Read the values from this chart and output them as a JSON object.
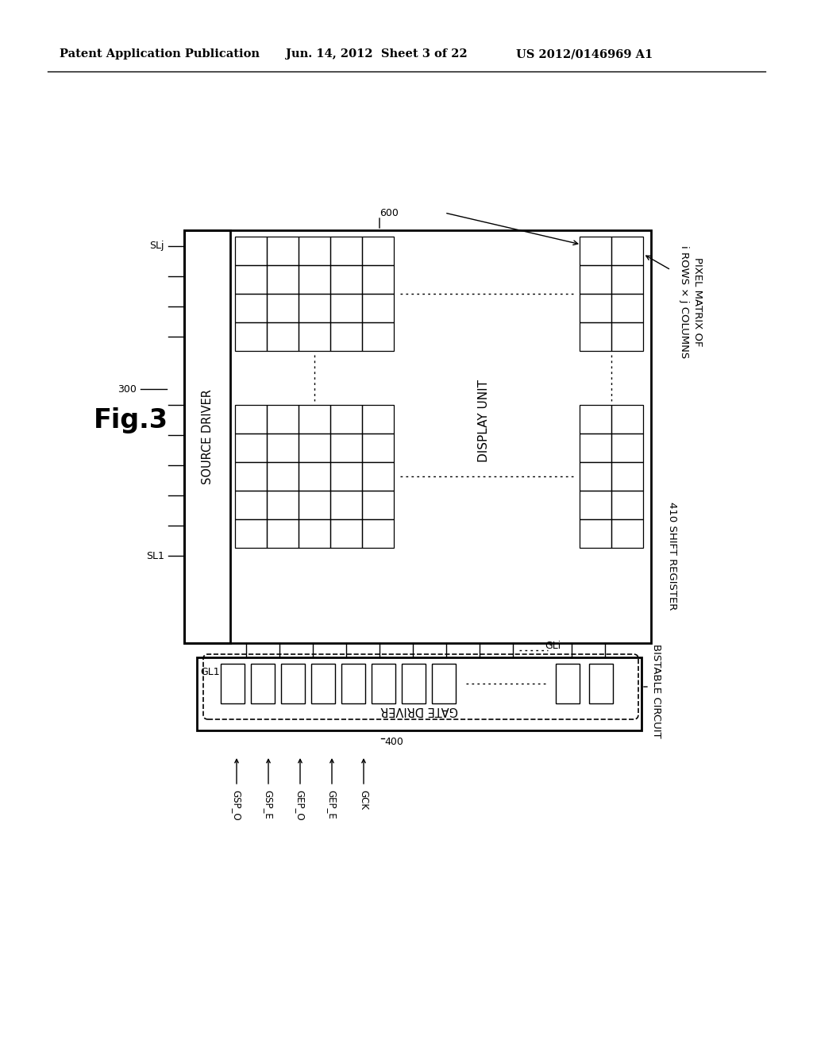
{
  "bg_color": "#ffffff",
  "header_left": "Patent Application Publication",
  "header_mid": "Jun. 14, 2012  Sheet 3 of 22",
  "header_right": "US 2012/0146969 A1",
  "fig_label": "Fig.3",
  "display_unit_label": "DISPLAY UNIT",
  "source_driver_label": "SOURCE DRIVER",
  "gate_driver_label": "GATE DRIVER",
  "shift_register_label": "410 SHIFT REGISTER",
  "bistable_label": "BISTABLE CIRCUIT",
  "pixel_matrix_label": "PIXEL MATRIX OF\ni ROWS × j COLUMNS",
  "label_300": "300",
  "label_400": "400",
  "label_600": "600",
  "label_SLj": "SLj",
  "label_SL1": "SL1",
  "label_GL1": "GL1",
  "label_GLi": "GLi",
  "signals": [
    "GSP_O",
    "GSP_E",
    "GEP_O",
    "GEP_E",
    "GCK"
  ]
}
